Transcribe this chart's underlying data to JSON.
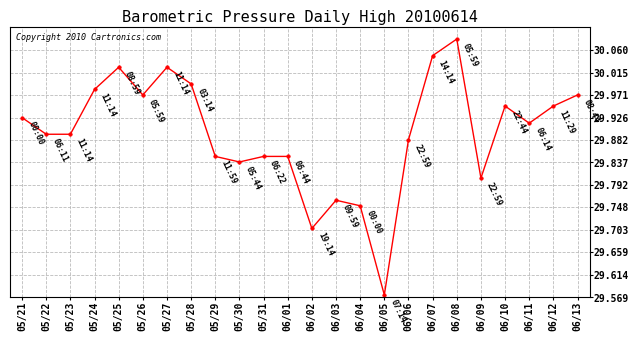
{
  "title": "Barometric Pressure Daily High 20100614",
  "copyright": "Copyright 2010 Cartronics.com",
  "background_color": "#ffffff",
  "line_color": "red",
  "marker_color": "red",
  "grid_color": "#bbbbbb",
  "x_labels": [
    "05/21",
    "05/22",
    "05/23",
    "05/24",
    "05/25",
    "05/26",
    "05/27",
    "05/28",
    "05/29",
    "05/30",
    "05/31",
    "06/01",
    "06/02",
    "06/03",
    "06/04",
    "06/05",
    "06/06",
    "06/07",
    "06/08",
    "06/09",
    "06/10",
    "06/11",
    "06/12",
    "06/13"
  ],
  "y_values": [
    29.926,
    29.893,
    29.893,
    29.982,
    30.026,
    29.971,
    30.026,
    29.993,
    29.849,
    29.838,
    29.849,
    29.849,
    29.706,
    29.762,
    29.751,
    29.574,
    29.882,
    30.049,
    30.082,
    29.806,
    29.949,
    29.915,
    29.949,
    29.971
  ],
  "annotations": [
    "00:00",
    "06:11",
    "11:14",
    "11:14",
    "08:59",
    "05:59",
    "11:14",
    "03:14",
    "11:59",
    "05:44",
    "06:22",
    "06:44",
    "19:14",
    "09:59",
    "00:00",
    "07:14",
    "22:59",
    "14:14",
    "05:59",
    "22:59",
    "22:44",
    "06:14",
    "11:29",
    "08:44"
  ],
  "ylim": [
    29.569,
    30.105
  ],
  "yticks": [
    30.06,
    30.015,
    29.971,
    29.926,
    29.882,
    29.837,
    29.792,
    29.748,
    29.703,
    29.659,
    29.614,
    29.569
  ],
  "title_fontsize": 11,
  "label_fontsize": 7,
  "annot_fontsize": 6,
  "copyright_fontsize": 6
}
